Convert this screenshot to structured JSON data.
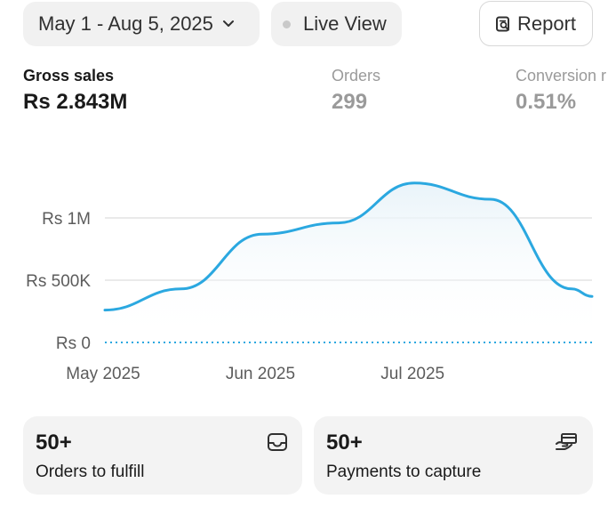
{
  "toolbar": {
    "date_range": "May 1 - Aug 5, 2025",
    "live_view": "Live View",
    "report": "Report"
  },
  "metrics": {
    "gross_sales": {
      "label": "Gross sales",
      "value": "Rs 2.843M"
    },
    "orders": {
      "label": "Orders",
      "value": "299"
    },
    "conversion": {
      "label": "Conversion r",
      "value": "0.51%"
    }
  },
  "chart_data": {
    "type": "area",
    "x": [
      "2025-05-01",
      "2025-05-16",
      "2025-06-01",
      "2025-06-16",
      "2025-07-01",
      "2025-07-16",
      "2025-08-01",
      "2025-08-05"
    ],
    "x_tick_labels": [
      "May 2025",
      "Jun 2025",
      "Jul 2025"
    ],
    "x_tick_dates": [
      "2025-05-01",
      "2025-06-01",
      "2025-07-01"
    ],
    "y_tick_labels": [
      "Rs 0",
      "Rs 500K",
      "Rs 1M"
    ],
    "y_tick_values": [
      0,
      500000,
      1000000
    ],
    "ylim": [
      0,
      1300000
    ],
    "series": [
      {
        "values": [
          260000,
          430000,
          870000,
          960000,
          1280000,
          1150000,
          430000,
          370000
        ]
      }
    ],
    "baseline_series_style": "dotted",
    "grid": true,
    "line_color": "#2ba8e0",
    "fill_color": "#e8f3f9"
  },
  "cards": {
    "orders": {
      "count": "50+",
      "label": "Orders to fulfill"
    },
    "payments": {
      "count": "50+",
      "label": "Payments to capture"
    }
  }
}
